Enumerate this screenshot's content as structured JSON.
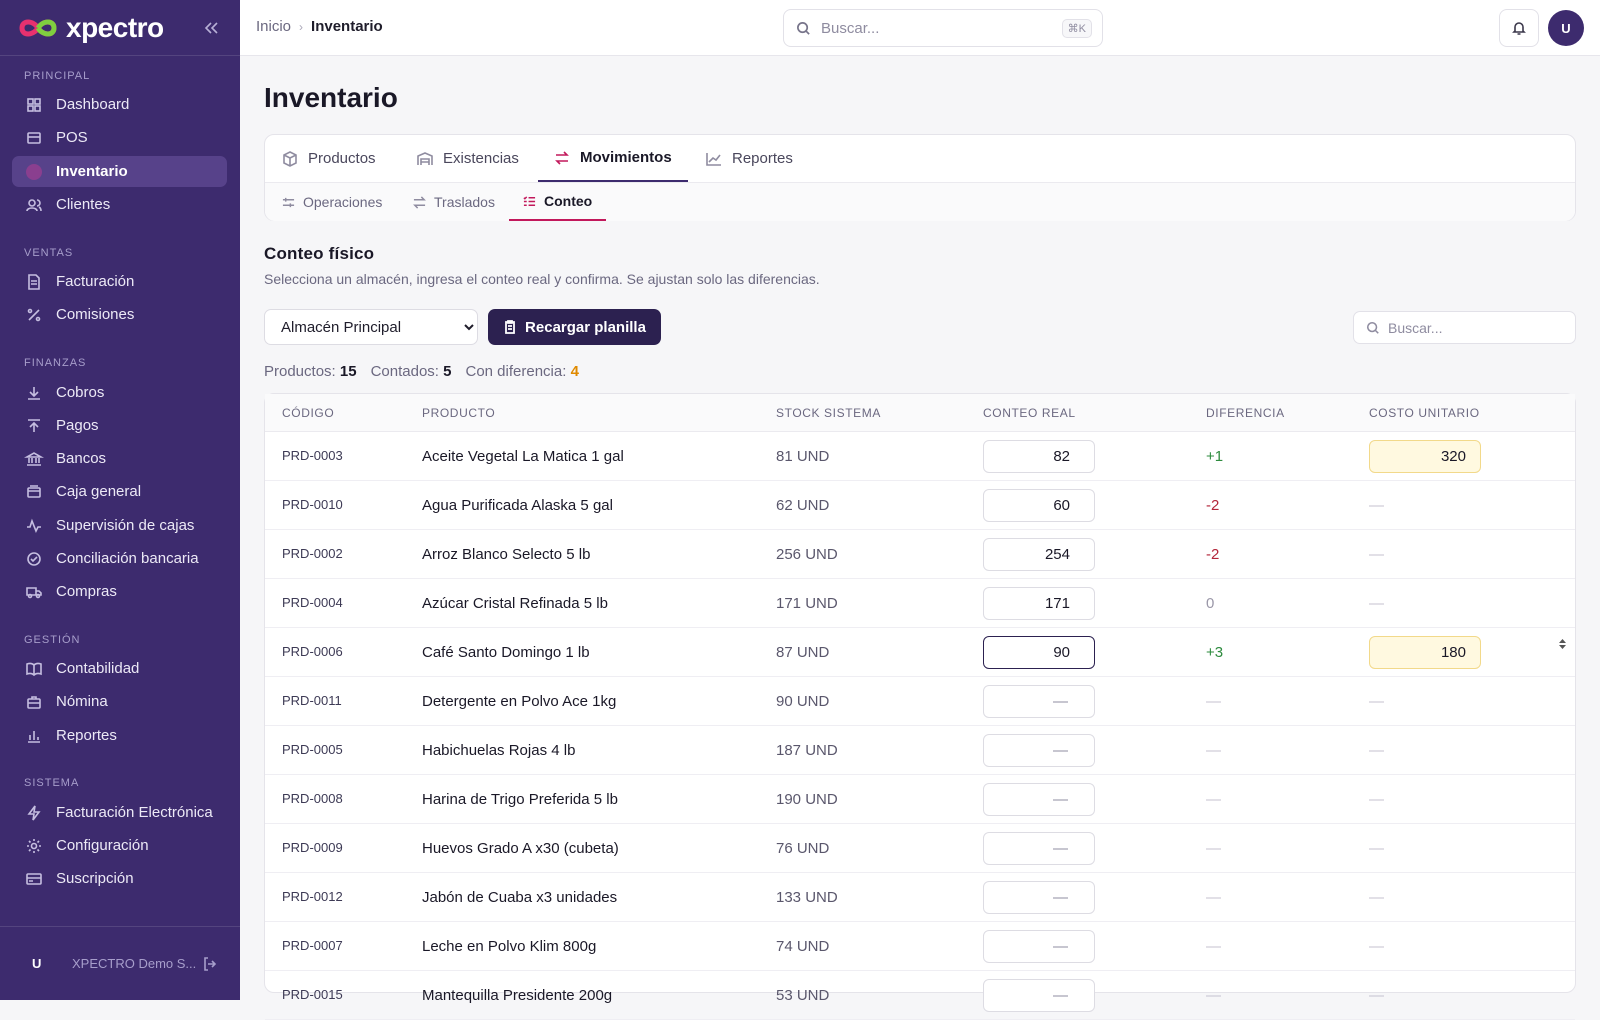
{
  "brand": {
    "name": "xpectro"
  },
  "sidebar": {
    "sections": [
      {
        "title": "PRINCIPAL",
        "items": [
          {
            "label": "Dashboard",
            "icon": "dashboard-icon"
          },
          {
            "label": "POS",
            "icon": "pos-icon"
          },
          {
            "label": "Inventario",
            "icon": "inventory-icon",
            "active": true
          },
          {
            "label": "Clientes",
            "icon": "clients-icon"
          }
        ]
      },
      {
        "title": "VENTAS",
        "items": [
          {
            "label": "Facturación",
            "icon": "invoice-icon"
          },
          {
            "label": "Comisiones",
            "icon": "percent-icon"
          }
        ]
      },
      {
        "title": "FINANZAS",
        "items": [
          {
            "label": "Cobros",
            "icon": "download-icon"
          },
          {
            "label": "Pagos",
            "icon": "upload-icon"
          },
          {
            "label": "Bancos",
            "icon": "bank-icon"
          },
          {
            "label": "Caja general",
            "icon": "wallet-icon"
          },
          {
            "label": "Supervisión de cajas",
            "icon": "activity-icon"
          },
          {
            "label": "Conciliación bancaria",
            "icon": "check-circle-icon"
          },
          {
            "label": "Compras",
            "icon": "truck-icon"
          }
        ]
      },
      {
        "title": "GESTIÓN",
        "items": [
          {
            "label": "Contabilidad",
            "icon": "book-icon"
          },
          {
            "label": "Nómina",
            "icon": "briefcase-icon"
          },
          {
            "label": "Reportes",
            "icon": "bar-chart-icon"
          }
        ]
      },
      {
        "title": "SISTEMA",
        "items": [
          {
            "label": "Facturación Electrónica",
            "icon": "bolt-icon"
          },
          {
            "label": "Configuración",
            "icon": "gear-icon"
          },
          {
            "label": "Suscripción",
            "icon": "card-icon"
          }
        ]
      }
    ],
    "footer": {
      "avatar": "U",
      "org": "XPECTRO Demo S..."
    }
  },
  "header": {
    "breadcrumb_home": "Inicio",
    "breadcrumb_current": "Inventario",
    "search_placeholder": "Buscar...",
    "search_shortcut": "⌘K",
    "avatar": "U"
  },
  "page": {
    "title": "Inventario"
  },
  "tabs": [
    {
      "label": "Productos",
      "icon": "box-icon"
    },
    {
      "label": "Existencias",
      "icon": "warehouse-icon"
    },
    {
      "label": "Movimientos",
      "icon": "arrows-icon",
      "active": true
    },
    {
      "label": "Reportes",
      "icon": "line-chart-icon"
    }
  ],
  "subtabs": [
    {
      "label": "Operaciones",
      "icon": "sliders-icon"
    },
    {
      "label": "Traslados",
      "icon": "transfer-icon"
    },
    {
      "label": "Conteo",
      "icon": "list-check-icon",
      "active": true
    }
  ],
  "count": {
    "title": "Conteo físico",
    "description": "Selecciona un almacén, ingresa el conteo real y confirma. Se ajustan solo las diferencias.",
    "warehouse_selected": "Almacén Principal",
    "reload_label": "Recargar planilla",
    "search_placeholder": "Buscar...",
    "stats": {
      "products_label": "Productos:",
      "products_value": "15",
      "counted_label": "Contados:",
      "counted_value": "5",
      "diff_label": "Con diferencia:",
      "diff_value": "4"
    }
  },
  "table": {
    "headers": {
      "code": "CÓDIGO",
      "product": "PRODUCTO",
      "stock": "STOCK SISTEMA",
      "count": "CONTEO REAL",
      "diff": "DIFERENCIA",
      "cost": "COSTO UNITARIO"
    },
    "rows": [
      {
        "code": "PRD-0003",
        "product": "Aceite Vegetal La Matica 1 gal",
        "stock": "81 UND",
        "count": "82",
        "diff": "+1",
        "diff_type": "pos",
        "cost": "320"
      },
      {
        "code": "PRD-0010",
        "product": "Agua Purificada Alaska 5 gal",
        "stock": "62 UND",
        "count": "60",
        "diff": "-2",
        "diff_type": "neg",
        "cost": "—"
      },
      {
        "code": "PRD-0002",
        "product": "Arroz Blanco Selecto 5 lb",
        "stock": "256 UND",
        "count": "254",
        "diff": "-2",
        "diff_type": "neg",
        "cost": "—"
      },
      {
        "code": "PRD-0004",
        "product": "Azúcar Cristal Refinada 5 lb",
        "stock": "171 UND",
        "count": "171",
        "diff": "0",
        "diff_type": "zero",
        "cost": "—"
      },
      {
        "code": "PRD-0006",
        "product": "Café Santo Domingo 1 lb",
        "stock": "87 UND",
        "count": "90",
        "diff": "+3",
        "diff_type": "pos",
        "cost": "180",
        "focused": true
      },
      {
        "code": "PRD-0011",
        "product": "Detergente en Polvo Ace 1kg",
        "stock": "90 UND",
        "count": "—",
        "diff": "—",
        "diff_type": "dash",
        "cost": "—"
      },
      {
        "code": "PRD-0005",
        "product": "Habichuelas Rojas 4 lb",
        "stock": "187 UND",
        "count": "—",
        "diff": "—",
        "diff_type": "dash",
        "cost": "—"
      },
      {
        "code": "PRD-0008",
        "product": "Harina de Trigo Preferida 5 lb",
        "stock": "190 UND",
        "count": "—",
        "diff": "—",
        "diff_type": "dash",
        "cost": "—"
      },
      {
        "code": "PRD-0009",
        "product": "Huevos Grado A x30 (cubeta)",
        "stock": "76 UND",
        "count": "—",
        "diff": "—",
        "diff_type": "dash",
        "cost": "—"
      },
      {
        "code": "PRD-0012",
        "product": "Jabón de Cuaba x3 unidades",
        "stock": "133 UND",
        "count": "—",
        "diff": "—",
        "diff_type": "dash",
        "cost": "—"
      },
      {
        "code": "PRD-0007",
        "product": "Leche en Polvo Klim 800g",
        "stock": "74 UND",
        "count": "—",
        "diff": "—",
        "diff_type": "dash",
        "cost": "—"
      },
      {
        "code": "PRD-0015",
        "product": "Mantequilla Presidente 200g",
        "stock": "53 UND",
        "count": "—",
        "diff": "—",
        "diff_type": "dash",
        "cost": "—"
      }
    ]
  }
}
